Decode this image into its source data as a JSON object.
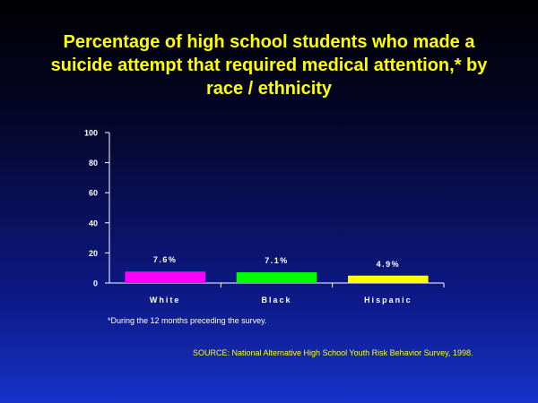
{
  "title_lines": [
    "Percentage of high school students who made a",
    "suicide attempt that required medical attention,* by",
    "race / ethnicity"
  ],
  "footnote": "*During the 12 months preceding the survey.",
  "source": "SOURCE: National Alternative High School Youth Risk Behavior Survey, 1998.",
  "colors": {
    "title": "#ffff00",
    "text": "#ffffff",
    "axis": "#ffffff"
  },
  "chart_data": {
    "type": "bar",
    "categories": [
      "White",
      "Black",
      "Hispanic"
    ],
    "values": [
      7.6,
      7.1,
      4.9
    ],
    "data_labels": [
      "7.6%",
      "7.1%",
      "4.9%"
    ],
    "bar_colors": [
      "#ff00ff",
      "#00ff00",
      "#ffff00"
    ],
    "ylim": [
      0,
      100
    ],
    "yticks": [
      0,
      20,
      40,
      60,
      80,
      100
    ],
    "xlabel": "",
    "ylabel": "",
    "grid": false,
    "legend": "none"
  }
}
